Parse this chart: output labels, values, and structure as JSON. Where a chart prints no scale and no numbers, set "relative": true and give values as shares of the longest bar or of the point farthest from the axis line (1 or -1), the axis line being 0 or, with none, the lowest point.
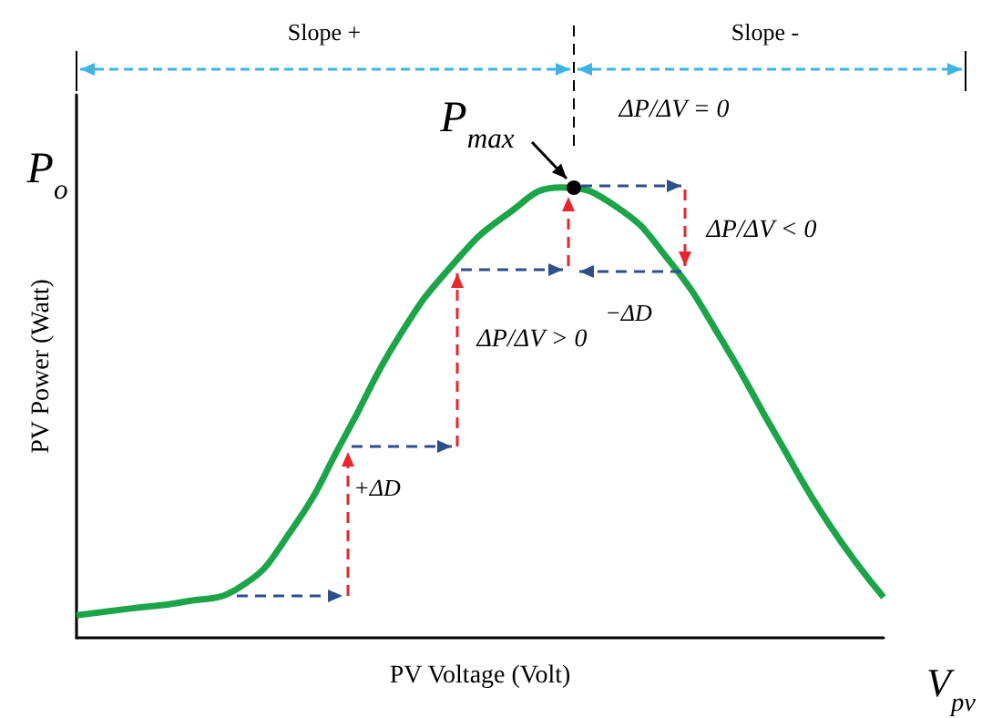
{
  "chart_data": {
    "type": "line",
    "relative": true,
    "xlabel": "PV Voltage (Volt)",
    "ylabel": "PV Power (Watt)",
    "categories": [
      null,
      null,
      null,
      null,
      null,
      null,
      null,
      null,
      null,
      null,
      null,
      null,
      null,
      null,
      null,
      null
    ],
    "series": [
      {
        "color": "#1ba548",
        "values": [
          0.05,
          0.065,
          0.08,
          0.11,
          0.24,
          0.45,
          0.67,
          0.83,
          0.94,
          1.0,
          0.96,
          0.84,
          0.66,
          0.45,
          0.25,
          0.09
        ]
      }
    ],
    "annotations": [
      "Slope +",
      "Slope -",
      "P$_{max}$",
      "ΔP/ΔV = 0",
      "ΔP/ΔV > 0",
      "ΔP/ΔV < 0",
      "+ΔD",
      "−ΔD",
      "P$_{o}$",
      "V$_{pv}$"
    ],
    "grid": false,
    "marker": "none",
    "line_style": "solid"
  }
}
